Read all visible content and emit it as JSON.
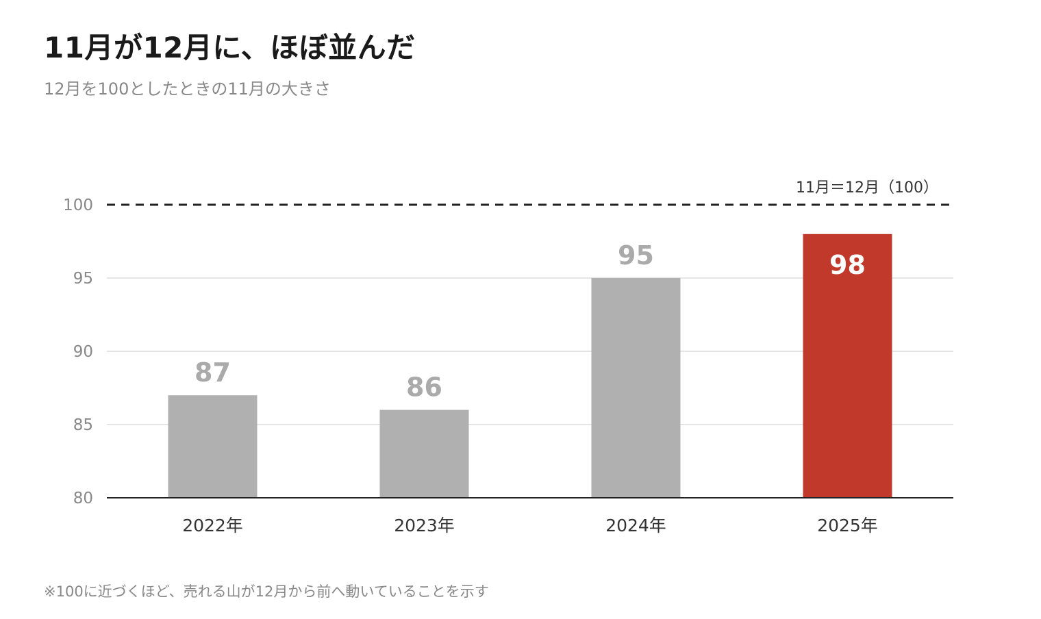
{
  "header": {
    "title": "11月が12月に、ほぼ並んだ",
    "subtitle": "12月を100としたときの11月の大きさ"
  },
  "footnote": "※100に近づくほど、売れる山が12月から前へ動いていることを示す",
  "chart_data": {
    "type": "bar",
    "title": "11月が12月に、ほぼ並んだ",
    "subtitle": "12月を100としたときの11月の大きさ",
    "categories": [
      "2022年",
      "2023年",
      "2024年",
      "2025年"
    ],
    "values": [
      87,
      86,
      95,
      98
    ],
    "value_labels": [
      "87",
      "86",
      "95",
      "98"
    ],
    "ylim": [
      80,
      100
    ],
    "yticks": [
      80,
      85,
      90,
      95,
      100
    ],
    "ytick_labels": [
      "80",
      "85",
      "90",
      "95",
      "100"
    ],
    "grid": true,
    "highlight_index": 3,
    "reference_line": {
      "value": 100,
      "label": "11月＝12月（100）",
      "style": "dashed"
    },
    "colors": {
      "bar": "#b0b0b0",
      "highlight": "#c0392b",
      "value_label": "#aaaaaa",
      "highlight_label": "#ffffff",
      "grid": "#e5e5e5",
      "axis": "#222222"
    }
  }
}
